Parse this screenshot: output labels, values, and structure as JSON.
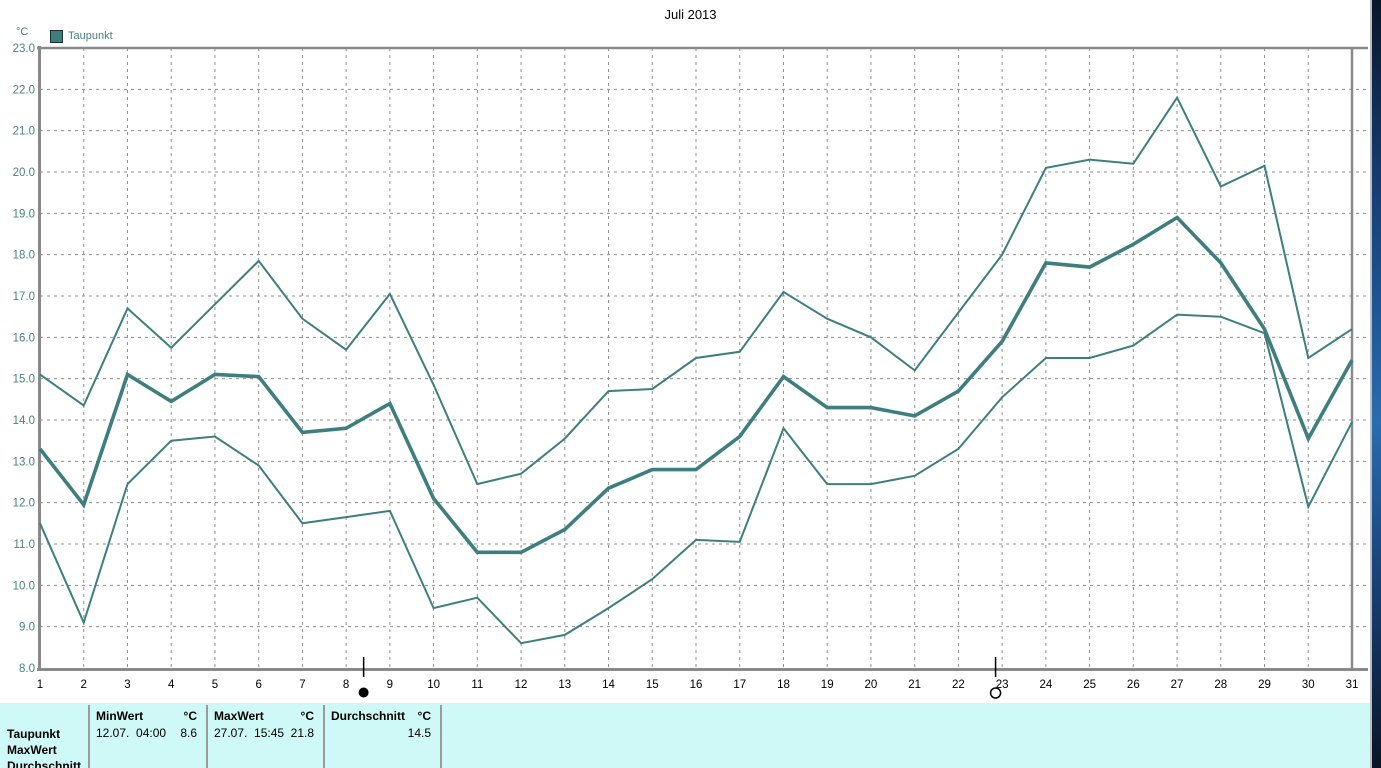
{
  "chart_data": {
    "type": "line",
    "title": "Juli 2013",
    "ylabel": "°C",
    "xlabel": "",
    "ylim": [
      8.0,
      23.0
    ],
    "xlim": [
      1,
      31
    ],
    "grid": true,
    "legend_position": "top-left",
    "legend": [
      {
        "label": "Taupunkt",
        "color": "#3E7E7E"
      }
    ],
    "categories": [
      1,
      2,
      3,
      4,
      5,
      6,
      7,
      8,
      9,
      10,
      11,
      12,
      13,
      14,
      15,
      16,
      17,
      18,
      19,
      20,
      21,
      22,
      23,
      24,
      25,
      26,
      27,
      28,
      29,
      30,
      31
    ],
    "series": [
      {
        "name": "Taupunkt Maximum",
        "role": "max",
        "thick": false,
        "values": [
          15.1,
          14.35,
          16.7,
          15.75,
          16.8,
          17.85,
          16.45,
          15.7,
          17.05,
          14.85,
          12.45,
          12.7,
          13.55,
          14.7,
          14.75,
          15.5,
          15.65,
          17.1,
          16.45,
          16.0,
          15.2,
          16.6,
          18.0,
          20.1,
          20.3,
          20.2,
          21.8,
          19.65,
          20.15,
          15.5,
          16.2
        ]
      },
      {
        "name": "Taupunkt Durchschnitt",
        "role": "avg",
        "thick": true,
        "values": [
          13.3,
          11.95,
          15.1,
          14.45,
          15.1,
          15.05,
          13.7,
          13.8,
          14.4,
          12.1,
          10.8,
          10.8,
          11.35,
          12.35,
          12.8,
          12.8,
          13.6,
          15.05,
          14.3,
          14.3,
          14.1,
          14.7,
          15.9,
          17.8,
          17.7,
          18.25,
          18.9,
          17.8,
          16.2,
          13.55,
          15.45
        ]
      },
      {
        "name": "Taupunkt Minimum",
        "role": "min",
        "thick": false,
        "values": [
          11.5,
          9.1,
          12.45,
          13.5,
          13.6,
          12.9,
          11.5,
          11.65,
          11.8,
          9.45,
          9.7,
          8.6,
          8.8,
          9.45,
          10.15,
          11.1,
          11.05,
          13.8,
          12.45,
          12.45,
          12.65,
          13.3,
          14.55,
          15.5,
          15.5,
          15.8,
          16.55,
          16.5,
          16.1,
          11.9,
          13.95
        ]
      }
    ],
    "yticks": [
      "23.0",
      "22.0",
      "21.0",
      "20.0",
      "19.0",
      "18.0",
      "17.0",
      "16.0",
      "15.0",
      "14.0",
      "13.0",
      "12.0",
      "11.0",
      "10.0",
      "9.0",
      "8.0"
    ],
    "xticks": [
      "1",
      "2",
      "3",
      "4",
      "5",
      "6",
      "7",
      "8",
      "9",
      "10",
      "11",
      "12",
      "13",
      "14",
      "15",
      "16",
      "17",
      "18",
      "19",
      "20",
      "21",
      "22",
      "23",
      "24",
      "25",
      "26",
      "27",
      "28",
      "29",
      "30",
      "31"
    ],
    "markers": [
      {
        "symbol": "new-moon-icon",
        "day": 8.4
      },
      {
        "symbol": "full-moon-icon",
        "day": 22.85
      }
    ]
  },
  "colors": {
    "series_line": "#3E7E7E",
    "grid": "#8F8F8F",
    "axis": "#898989",
    "y_tick_label": "#4A8080",
    "x_tick_label": "#000000",
    "title_text": "#000000",
    "panel_bg": "#CFF9F7",
    "table_separator": "#9A9A9A",
    "marker": "#000000"
  },
  "summary_table": {
    "row_labels": [
      "Taupunkt",
      "MaxWert",
      "Durchschnitt"
    ],
    "columns": [
      {
        "header": "MinWert",
        "unit": "°C",
        "time": "12.07.  04:00",
        "value": "8.6"
      },
      {
        "header": "MaxWert",
        "unit": "°C",
        "time": "27.07.  15:45",
        "value": "21.8"
      },
      {
        "header": "Durchschnitt",
        "unit": "°C",
        "time": "",
        "value": "14.5"
      }
    ]
  }
}
